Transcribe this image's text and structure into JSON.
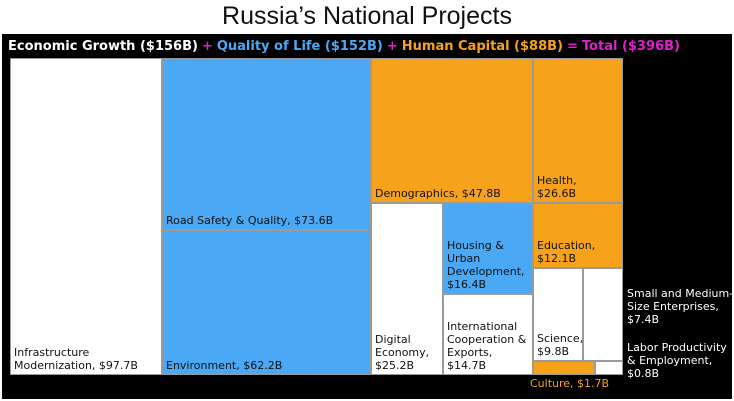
{
  "chart_data": {
    "type": "treemap",
    "title": "Russia’s National Projects",
    "legend": [
      {
        "label": "Economic Growth ($156B)",
        "color": "#ffffff"
      },
      {
        "label": "+",
        "color": "#e01fd0"
      },
      {
        "label": "Quality of Life ($152B)",
        "color": "#4aa8f5"
      },
      {
        "label": "+",
        "color": "#e01fd0"
      },
      {
        "label": "Human Capital ($88B)",
        "color": "#f7a21b"
      },
      {
        "label": "=",
        "color": "#e01fd0"
      },
      {
        "label": "Total ($396B)",
        "color": "#e01fd0"
      }
    ],
    "groups": {
      "economic_growth": "#ffffff",
      "quality_of_life": "#4aa8f5",
      "human_capital": "#f7a21b"
    },
    "items": [
      {
        "name": "Infrastructure Modernization",
        "value": 97.7,
        "group": "economic_growth",
        "label": "Infrastructure Modernization, $97.7B"
      },
      {
        "name": "Road Safety & Quality",
        "value": 73.6,
        "group": "quality_of_life",
        "label": "Road Safety & Quality, $73.6B"
      },
      {
        "name": "Environment",
        "value": 62.2,
        "group": "quality_of_life",
        "label": "Environment, $62.2B"
      },
      {
        "name": "Demographics",
        "value": 47.8,
        "group": "human_capital",
        "label": "Demographics, $47.8B"
      },
      {
        "name": "Health",
        "value": 26.6,
        "group": "human_capital",
        "label": "Health, $26.6B"
      },
      {
        "name": "Digital Economy",
        "value": 25.2,
        "group": "economic_growth",
        "label": "Digital Economy, $25.2B"
      },
      {
        "name": "Housing & Urban Development",
        "value": 16.4,
        "group": "quality_of_life",
        "label": "Housing & Urban Development, $16.4B"
      },
      {
        "name": "International Cooperation & Exports",
        "value": 14.7,
        "group": "economic_growth",
        "label": "International Cooperation & Exports, $14.7B"
      },
      {
        "name": "Education",
        "value": 12.1,
        "group": "human_capital",
        "label": "Education, $12.1B"
      },
      {
        "name": "Science",
        "value": 9.8,
        "group": "economic_growth",
        "label": "Science, $9.8B"
      },
      {
        "name": "Small and Medium-Size Enterprises",
        "value": 7.4,
        "group": "economic_growth",
        "label": "Small and Medium-Size Enterprises, $7.4B"
      },
      {
        "name": "Culture",
        "value": 1.7,
        "group": "human_capital",
        "label": "Culture, $1.7B"
      },
      {
        "name": "Labor Productivity & Employment",
        "value": 0.8,
        "group": "economic_growth",
        "label": "Labor Productivity & Employment, $0.8B"
      }
    ]
  }
}
